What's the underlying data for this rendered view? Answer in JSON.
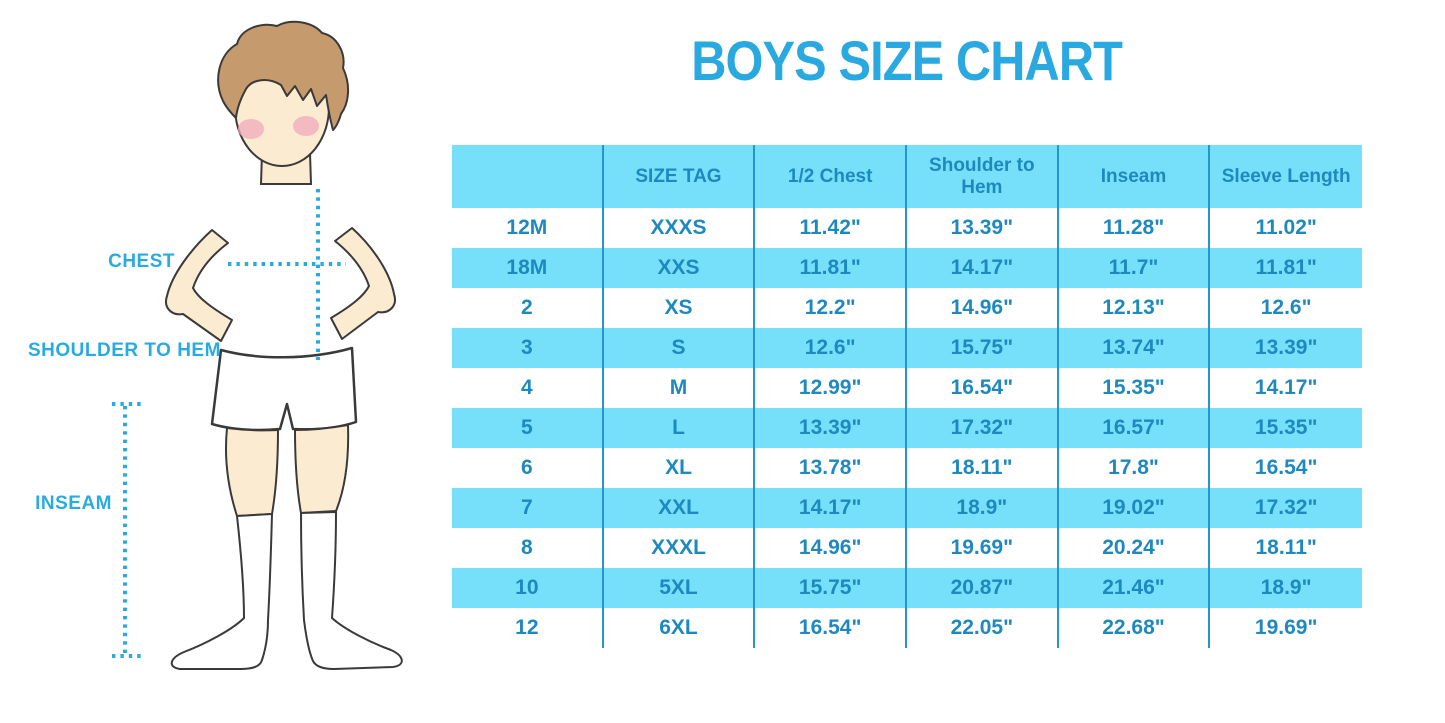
{
  "title": "BOYS SIZE CHART",
  "chart_data": {
    "type": "table",
    "title": "BOYS SIZE CHART",
    "columns": [
      "",
      "SIZE TAG",
      "1/2 Chest",
      "Shoulder to Hem",
      "Inseam",
      "Sleeve Length"
    ],
    "rows": [
      [
        "12M",
        "XXXS",
        "11.42\"",
        "13.39\"",
        "11.28\"",
        "11.02\""
      ],
      [
        "18M",
        "XXS",
        "11.81\"",
        "14.17\"",
        "11.7\"",
        "11.81\""
      ],
      [
        "2",
        "XS",
        "12.2\"",
        "14.96\"",
        "12.13\"",
        "12.6\""
      ],
      [
        "3",
        "S",
        "12.6\"",
        "15.75\"",
        "13.74\"",
        "13.39\""
      ],
      [
        "4",
        "M",
        "12.99\"",
        "16.54\"",
        "15.35\"",
        "14.17\""
      ],
      [
        "5",
        "L",
        "13.39\"",
        "17.32\"",
        "16.57\"",
        "15.35\""
      ],
      [
        "6",
        "XL",
        "13.78\"",
        "18.11\"",
        "17.8\"",
        "16.54\""
      ],
      [
        "7",
        "XXL",
        "14.17\"",
        "18.9\"",
        "19.02\"",
        "17.32\""
      ],
      [
        "8",
        "XXXL",
        "14.96\"",
        "19.69\"",
        "20.24\"",
        "18.11\""
      ],
      [
        "10",
        "5XL",
        "15.75\"",
        "20.87\"",
        "21.46\"",
        "18.9\""
      ],
      [
        "12",
        "6XL",
        "16.54\"",
        "22.05\"",
        "22.68\"",
        "19.69\""
      ]
    ],
    "row_striping": "alternating white and light blue, starting white",
    "legend_position": "none",
    "grid": "vertical dividers only"
  },
  "figure": {
    "description": "boy-with-measurement-lines-illustration",
    "labels": {
      "chest": "CHEST",
      "shoulder_to_hem": "SHOULDER TO HEM",
      "inseam": "INSEAM"
    }
  },
  "colors": {
    "title_blue": "#29A9E0",
    "label_blue": "#29ABE2",
    "stripe_blue": "#76E0FA",
    "divider_blue": "#2496CD",
    "table_text": "#1E89BF",
    "hair_brown": "#C59B6D",
    "skin": "#FBEBD0",
    "blush_pink": "#F2A9BE",
    "outline": "#3A3A3A"
  }
}
